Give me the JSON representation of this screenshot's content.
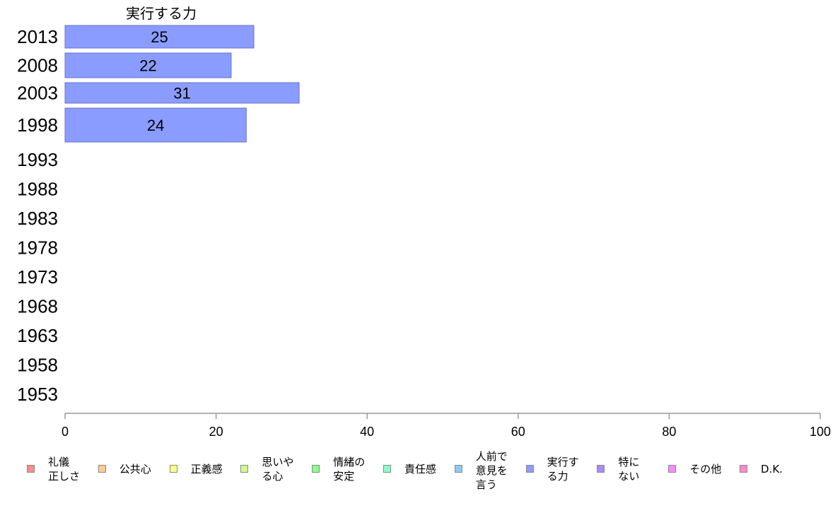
{
  "chart_data": {
    "type": "bar",
    "orientation": "horizontal",
    "title": "実行する力",
    "categories": [
      "2013",
      "2008",
      "2003",
      "1998",
      "1993",
      "1988",
      "1983",
      "1978",
      "1973",
      "1968",
      "1963",
      "1958",
      "1953"
    ],
    "series": [
      {
        "name": "実行する力",
        "values": [
          25,
          22,
          31,
          24,
          null,
          null,
          null,
          null,
          null,
          null,
          null,
          null,
          null
        ],
        "labels": [
          "25",
          "22",
          "31",
          "24",
          "",
          "",
          "",
          "",
          "",
          "",
          "",
          "",
          ""
        ],
        "color": "#8a9cff"
      }
    ],
    "xlim": [
      0,
      100
    ],
    "xticks": [
      "0",
      "20",
      "40",
      "60",
      "80",
      "100"
    ],
    "grid": false,
    "legend_placement": "bottom",
    "legend": [
      {
        "label": "礼儀\n正しさ",
        "color": "#ff8a8a"
      },
      {
        "label": "公共心",
        "color": "#ffcc8a"
      },
      {
        "label": "正義感",
        "color": "#ffff8a"
      },
      {
        "label": "思いや\nる心",
        "color": "#ccff8a"
      },
      {
        "label": "情緒の\n安定",
        "color": "#8aff8a"
      },
      {
        "label": "責任感",
        "color": "#8affcc"
      },
      {
        "label": "人前で\n意見を\n言う",
        "color": "#8accff"
      },
      {
        "label": "実行す\nる力",
        "color": "#8a9cff"
      },
      {
        "label": "特に\nない",
        "color": "#a98aff"
      },
      {
        "label": "その他",
        "color": "#ff8aff"
      },
      {
        "label": "D.K.",
        "color": "#ff8acc"
      }
    ]
  }
}
